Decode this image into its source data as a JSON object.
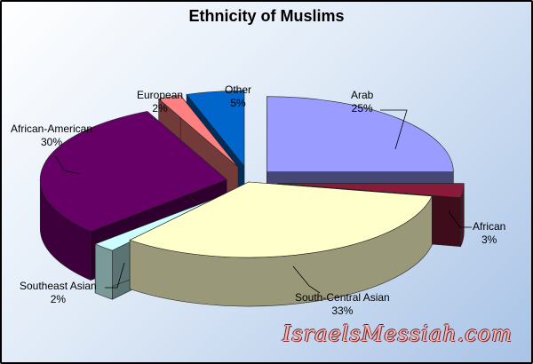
{
  "chart_data": {
    "type": "pie",
    "title": "Ethnicity of Muslims",
    "slices": [
      {
        "label": "Arab",
        "value": 25,
        "display": "25%",
        "color": "#9a9cff"
      },
      {
        "label": "African",
        "value": 3,
        "display": "3%",
        "color": "#8a1a3a"
      },
      {
        "label": "South-Central Asian",
        "value": 33,
        "display": "33%",
        "color": "#ffffcc"
      },
      {
        "label": "Southeast Asian",
        "value": 2,
        "display": "2%",
        "color": "#ccffff"
      },
      {
        "label": "African-American",
        "value": 30,
        "display": "30%",
        "color": "#660066"
      },
      {
        "label": "European",
        "value": 2,
        "display": "2%",
        "color": "#ff8080"
      },
      {
        "label": "Other",
        "value": 5,
        "display": "5%",
        "color": "#0066cc"
      }
    ]
  },
  "watermark": "IsraelsMessiah.com"
}
